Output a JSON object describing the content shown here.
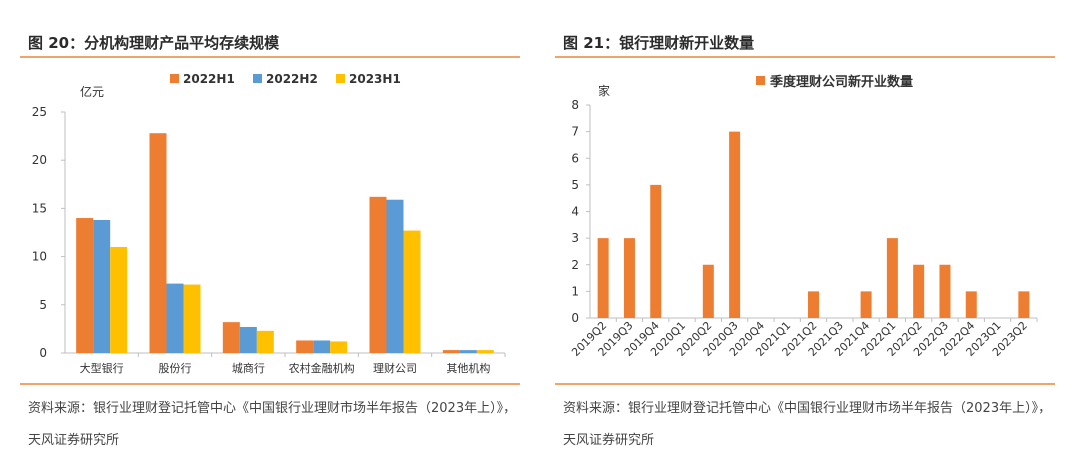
{
  "left": {
    "title": "图 20：分机构理财产品平均存续规模",
    "source": "资料来源：银行业理财登记托管中心《中国银行业理财市场半年报告（2023年上）》，天风证券研究所",
    "chart_data": {
      "type": "bar",
      "ylabel": "亿元",
      "ylim": [
        0,
        25
      ],
      "yticks": [
        0,
        5,
        10,
        15,
        20,
        25
      ],
      "categories": [
        "大型银行",
        "股份行",
        "城商行",
        "农村金融机构",
        "理财公司",
        "其他机构"
      ],
      "series": [
        {
          "name": "2022H1",
          "color": "#ed7d31",
          "values": [
            14.0,
            22.8,
            3.2,
            1.3,
            16.2,
            0.3
          ]
        },
        {
          "name": "2022H2",
          "color": "#5b9bd5",
          "values": [
            13.8,
            7.2,
            2.7,
            1.3,
            15.9,
            0.3
          ]
        },
        {
          "name": "2023H1",
          "color": "#ffc000",
          "values": [
            11.0,
            7.1,
            2.3,
            1.2,
            12.7,
            0.3
          ]
        }
      ],
      "legend_position": "top",
      "grid": false
    }
  },
  "right": {
    "title": "图 21：银行理财新开业数量",
    "source": "资料来源：银行业理财登记托管中心《中国银行业理财市场半年报告（2023年上）》，天风证券研究所",
    "chart_data": {
      "type": "bar",
      "ylabel": "家",
      "ylim": [
        0,
        8
      ],
      "yticks": [
        0,
        1,
        2,
        3,
        4,
        5,
        6,
        7,
        8
      ],
      "categories": [
        "2019Q2",
        "2019Q3",
        "2019Q4",
        "2020Q1",
        "2020Q2",
        "2020Q3",
        "2020Q4",
        "2021Q1",
        "2021Q2",
        "2021Q3",
        "2021Q4",
        "2022Q1",
        "2022Q2",
        "2022Q3",
        "2022Q4",
        "2023Q1",
        "2023Q2"
      ],
      "series": [
        {
          "name": "季度理财公司新开业数量",
          "color": "#ed7d31",
          "values": [
            3,
            3,
            5,
            0,
            2,
            7,
            0,
            0,
            1,
            0,
            1,
            3,
            2,
            2,
            1,
            0,
            1
          ]
        }
      ],
      "legend_position": "top",
      "grid": false
    }
  }
}
